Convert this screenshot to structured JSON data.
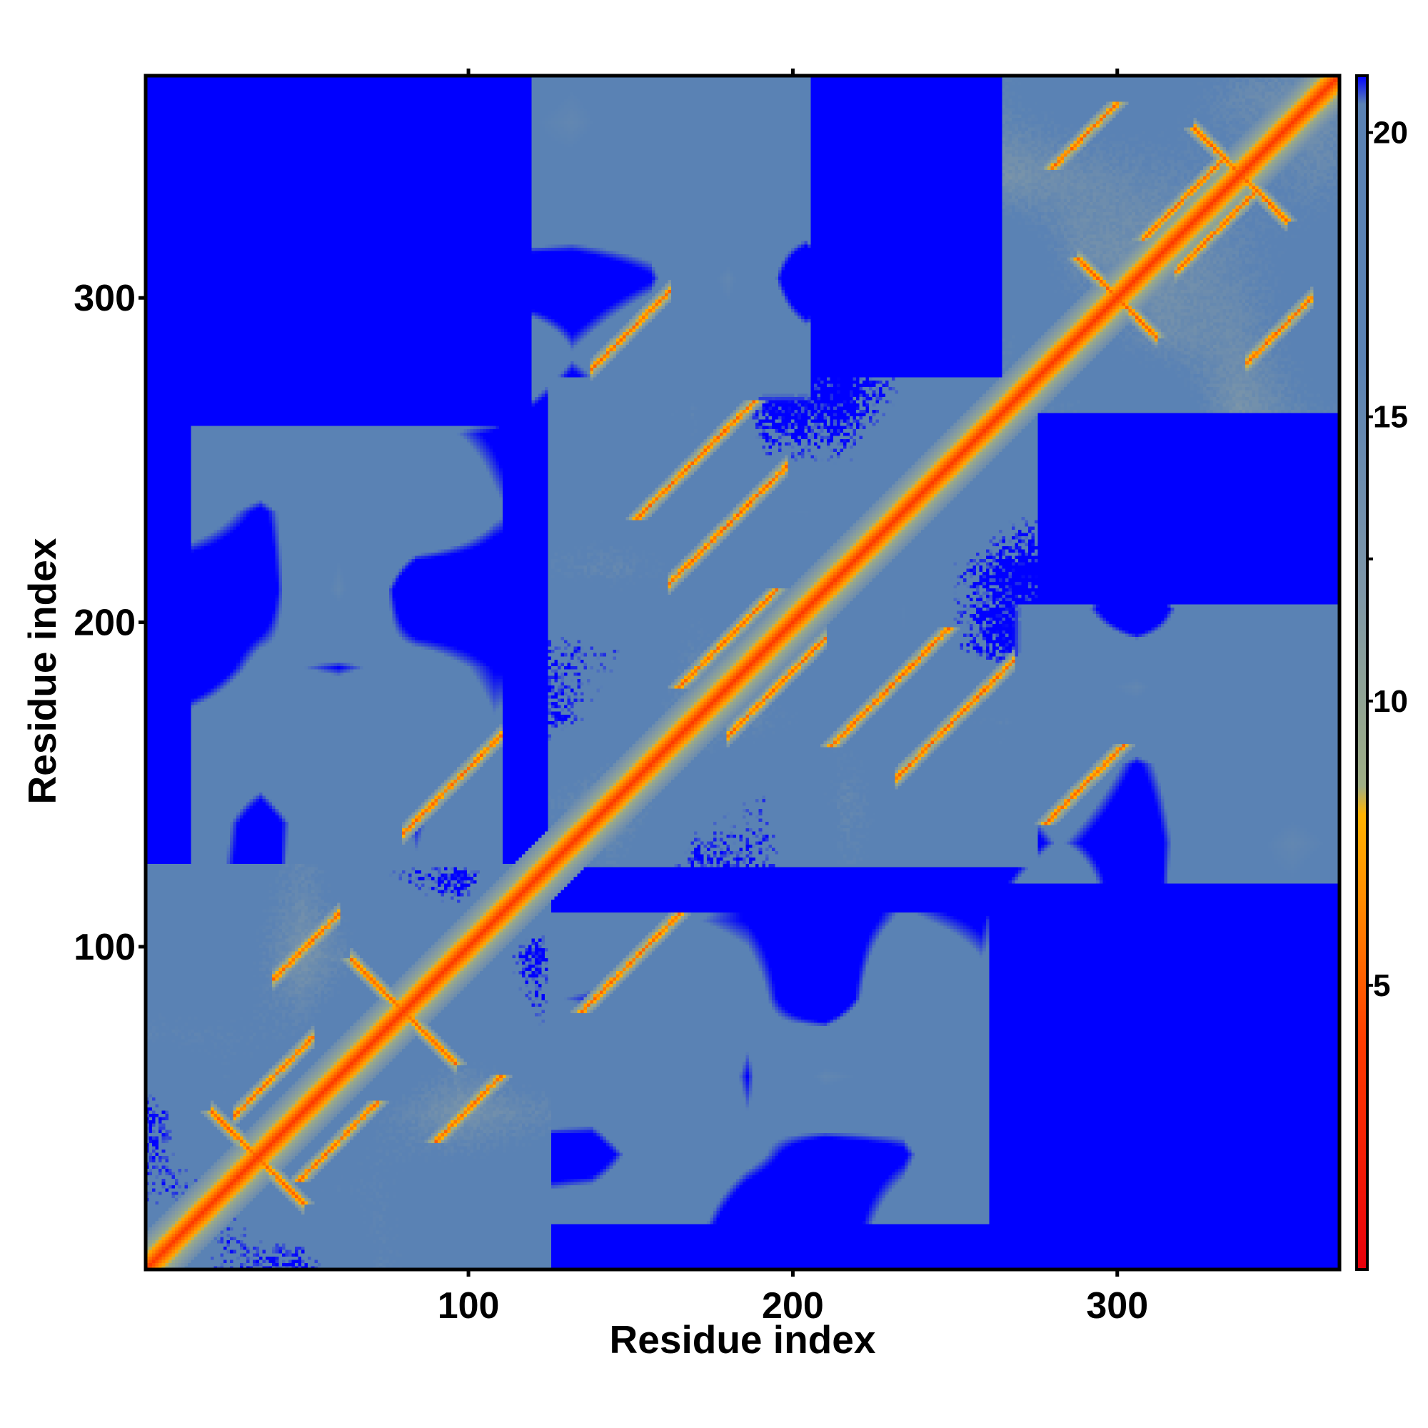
{
  "chart_data": {
    "type": "heatmap",
    "title": "",
    "xlabel": "Residue index",
    "ylabel": "Residue index",
    "n_residues": 368,
    "xlim": [
      1,
      368
    ],
    "ylim": [
      1,
      368
    ],
    "x_ticks": [
      100,
      200,
      300
    ],
    "x_tick_labels": [
      "100",
      "200",
      "300"
    ],
    "y_ticks": [
      100,
      200,
      300
    ],
    "y_tick_labels": [
      "100",
      "200",
      "300"
    ],
    "colorbar": {
      "range": [
        0,
        21
      ],
      "ticks": [
        5,
        10,
        15,
        20
      ],
      "tick_labels": [
        "5",
        "10",
        "15",
        "20"
      ],
      "stops": [
        {
          "value": 0,
          "color": "#e8000b"
        },
        {
          "value": 4,
          "color": "#ff3c00"
        },
        {
          "value": 6.5,
          "color": "#ff8c00"
        },
        {
          "value": 8,
          "color": "#ffb300"
        },
        {
          "value": 8.5,
          "color": "#9fae84"
        },
        {
          "value": 12,
          "color": "#7d96a8"
        },
        {
          "value": 16,
          "color": "#5a82b4"
        },
        {
          "value": 20.5,
          "color": "#5a82b4"
        },
        {
          "value": 21,
          "color": "#0000ff"
        }
      ]
    },
    "diagonal_distance": 3.8,
    "background_distance": 21,
    "domains": [
      {
        "start": 1,
        "end": 125,
        "mean_distance": 17
      },
      {
        "start": 125,
        "end": 275,
        "mean_distance": 17.5
      },
      {
        "start": 265,
        "end": 368,
        "mean_distance": 16.5
      }
    ],
    "inter_domain_regions": [
      {
        "x": [
          125,
          260
        ],
        "y": [
          15,
          110
        ],
        "mean_distance": 19.5
      },
      {
        "x": [
          195,
          368
        ],
        "y": [
          120,
          205
        ],
        "mean_distance": 19.5
      },
      {
        "x": [
          125,
          265
        ],
        "y": [
          240,
          368
        ],
        "mean_distance": 19.5
      }
    ],
    "contact_features": [
      {
        "center": [
          35,
          35
        ],
        "type": "antiparallel",
        "half_length": 14
      },
      {
        "center": [
          80,
          80
        ],
        "type": "antiparallel",
        "half_length": 16
      },
      {
        "center": [
          300,
          300
        ],
        "type": "antiparallel",
        "half_length": 12
      },
      {
        "center": [
          338,
          338
        ],
        "type": "antiparallel",
        "half_length": 14
      },
      {
        "center": [
          100,
          50
        ],
        "type": "parallel",
        "half_length": 10
      },
      {
        "center": [
          60,
          40
        ],
        "type": "parallel",
        "half_length": 12
      },
      {
        "center": [
          150,
          95
        ],
        "type": "parallel",
        "half_length": 15
      },
      {
        "center": [
          170,
          250
        ],
        "type": "parallel",
        "half_length": 18
      },
      {
        "center": [
          180,
          195
        ],
        "type": "parallel",
        "half_length": 15
      },
      {
        "center": [
          230,
          180
        ],
        "type": "parallel",
        "half_length": 18
      },
      {
        "center": [
          290,
          150
        ],
        "type": "parallel",
        "half_length": 12
      },
      {
        "center": [
          320,
          330
        ],
        "type": "parallel",
        "half_length": 12
      },
      {
        "center": [
          290,
          350
        ],
        "type": "parallel",
        "half_length": 10
      }
    ]
  }
}
